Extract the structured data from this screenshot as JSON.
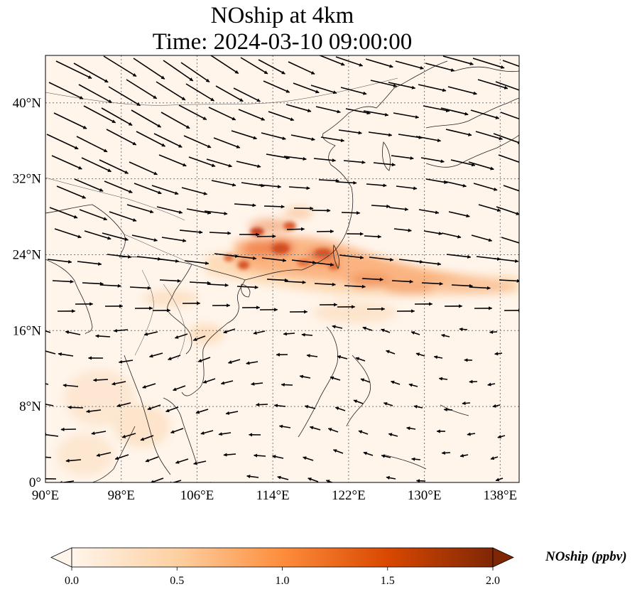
{
  "title": {
    "line1": "NOship at 4km",
    "line2": "Time: 2024-03-10 09:00:00"
  },
  "map": {
    "lon_range": [
      90,
      140
    ],
    "lat_range": [
      0,
      45
    ],
    "lon_ticks": [
      {
        "value": 90,
        "label": "90°E"
      },
      {
        "value": 98,
        "label": "98°E"
      },
      {
        "value": 106,
        "label": "106°E"
      },
      {
        "value": 114,
        "label": "114°E"
      },
      {
        "value": 122,
        "label": "122°E"
      },
      {
        "value": 130,
        "label": "130°E"
      },
      {
        "value": 138,
        "label": "138°E"
      }
    ],
    "lat_ticks": [
      {
        "value": 0,
        "label": "0°"
      },
      {
        "value": 8,
        "label": "8°N"
      },
      {
        "value": 16,
        "label": "16°N"
      },
      {
        "value": 24,
        "label": "24°N"
      },
      {
        "value": 32,
        "label": "32°N"
      },
      {
        "value": 40,
        "label": "40°N"
      }
    ],
    "gridlines": true,
    "wind_vectors": true
  },
  "colorbar": {
    "label": "NOship (ppbv)",
    "min": 0.0,
    "max": 2.0,
    "ticks": [
      "0.0",
      "0.5",
      "1.0",
      "1.5",
      "2.0"
    ],
    "extend": "both",
    "colormap": [
      "#fff5eb",
      "#fdd0a2",
      "#fd8d3c",
      "#d94801",
      "#7f2704"
    ]
  }
}
